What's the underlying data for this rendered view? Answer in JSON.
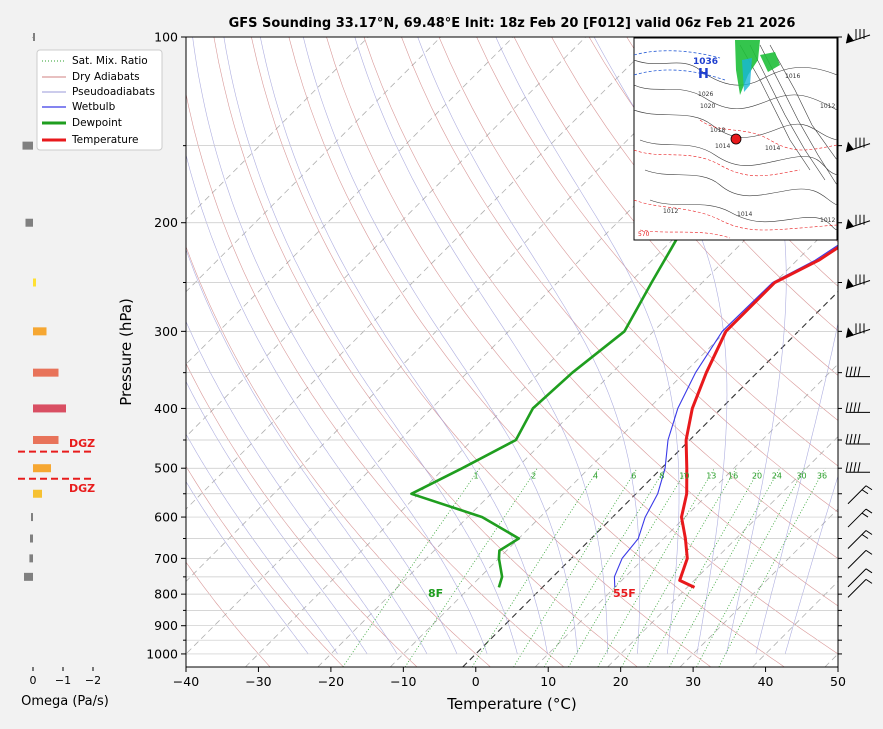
{
  "chart_data": {
    "type": "line",
    "title": "GFS Sounding 33.17°N, 69.48°E Init: 18z Feb 20 [F012] valid 06z Feb 21 2026",
    "xlabel": "Temperature (°C)",
    "ylabel": "Pressure (hPa)",
    "xlim": [
      -40,
      50
    ],
    "ylim": [
      1050,
      100
    ],
    "y_scale": "log",
    "x_ticks": [
      "−40",
      "−30",
      "−20",
      "−10",
      "0",
      "10",
      "20",
      "30",
      "40",
      "50"
    ],
    "y_ticks": [
      "100",
      "200",
      "300",
      "400",
      "500",
      "600",
      "700",
      "800",
      "900",
      "1000"
    ],
    "legend": [
      "Sat. Mix. Ratio",
      "Dry Adiabats",
      "Pseudoadiabats",
      "Wetbulb",
      "Dewpoint",
      "Temperature"
    ],
    "legend_position": "top-left",
    "mixing_ratio_labels": [
      "1",
      "2",
      "4",
      "6",
      "8",
      "10",
      "13",
      "16",
      "20",
      "24",
      "30",
      "36"
    ],
    "series": [
      {
        "name": "Temperature",
        "color": "#e8191c",
        "points": [
          [
            -4.5,
            100
          ],
          [
            -3.5,
            120
          ],
          [
            -3.8,
            150
          ],
          [
            -4.3,
            200
          ],
          [
            -7,
            230
          ],
          [
            -10,
            250
          ],
          [
            -10,
            300
          ],
          [
            -7,
            350
          ],
          [
            -4,
            400
          ],
          [
            -0.5,
            450
          ],
          [
            3.5,
            500
          ],
          [
            7,
            550
          ],
          [
            9.5,
            600
          ],
          [
            13,
            650
          ],
          [
            16,
            700
          ],
          [
            18,
            760
          ],
          [
            21,
            780
          ]
        ]
      },
      {
        "name": "Wetbulb",
        "color": "#3a3ae8",
        "points": [
          [
            -4.5,
            100
          ],
          [
            -3.5,
            120
          ],
          [
            -4.2,
            150
          ],
          [
            -4.8,
            200
          ],
          [
            -7.5,
            230
          ],
          [
            -10.3,
            250
          ],
          [
            -10.5,
            300
          ],
          [
            -8.5,
            350
          ],
          [
            -6,
            400
          ],
          [
            -3,
            450
          ],
          [
            0.5,
            500
          ],
          [
            3,
            550
          ],
          [
            4.5,
            600
          ],
          [
            6.5,
            650
          ],
          [
            7,
            700
          ],
          [
            8.5,
            750
          ],
          [
            10,
            780
          ]
        ]
      },
      {
        "name": "Dewpoint",
        "color": "#1f9e1f",
        "points": [
          [
            -22.5,
            100
          ],
          [
            -27,
            120
          ],
          [
            -30.5,
            150
          ],
          [
            -30.5,
            200
          ],
          [
            -29,
            220
          ],
          [
            -27,
            250
          ],
          [
            -24,
            300
          ],
          [
            -25.5,
            350
          ],
          [
            -26,
            400
          ],
          [
            -24,
            450
          ],
          [
            -27.5,
            500
          ],
          [
            -31,
            550
          ],
          [
            -18,
            600
          ],
          [
            -10,
            650
          ],
          [
            -11,
            680
          ],
          [
            -10,
            700
          ],
          [
            -7,
            750
          ],
          [
            -6,
            780
          ]
        ]
      }
    ],
    "surface_labels": {
      "temperature": "55F",
      "dewpoint": "8F"
    },
    "wind_barbs_pressures": [
      100,
      150,
      200,
      250,
      300,
      350,
      400,
      450,
      500,
      550,
      600,
      650,
      700,
      750,
      780
    ]
  },
  "omega_panel": {
    "xlabel": "Omega (Pa/s)",
    "ticks": [
      "0",
      "−1",
      "−2"
    ],
    "dgz_label_upper": "DGZ",
    "dgz_label_lower": "DGZ",
    "bars": [
      {
        "p": 100,
        "v": -0.05,
        "color": "#808080"
      },
      {
        "p": 150,
        "v": 0.35,
        "color": "#808080"
      },
      {
        "p": 200,
        "v": 0.25,
        "color": "#808080"
      },
      {
        "p": 250,
        "v": -0.1,
        "color": "#ffe033"
      },
      {
        "p": 300,
        "v": -0.45,
        "color": "#f6a732"
      },
      {
        "p": 350,
        "v": -0.85,
        "color": "#e8735a"
      },
      {
        "p": 400,
        "v": -1.1,
        "color": "#d94f63"
      },
      {
        "p": 450,
        "v": -0.85,
        "color": "#e8735a"
      },
      {
        "p": 500,
        "v": -0.6,
        "color": "#f6a732"
      },
      {
        "p": 550,
        "v": -0.3,
        "color": "#f6c132"
      },
      {
        "p": 600,
        "v": 0.05,
        "color": "#808080"
      },
      {
        "p": 650,
        "v": 0.1,
        "color": "#808080"
      },
      {
        "p": 700,
        "v": 0.12,
        "color": "#808080"
      },
      {
        "p": 750,
        "v": 0.3,
        "color": "#808080"
      }
    ],
    "dgz_pressures": [
      470,
      520
    ]
  },
  "inset_map": {
    "high_label": "H",
    "high_value": "1036",
    "isobar_labels": [
      "1026",
      "1020",
      "1014",
      "1018",
      "1012",
      "1014",
      "1016",
      "1012",
      "1014",
      "1012",
      "570"
    ],
    "marker_color": "#e8191c"
  }
}
